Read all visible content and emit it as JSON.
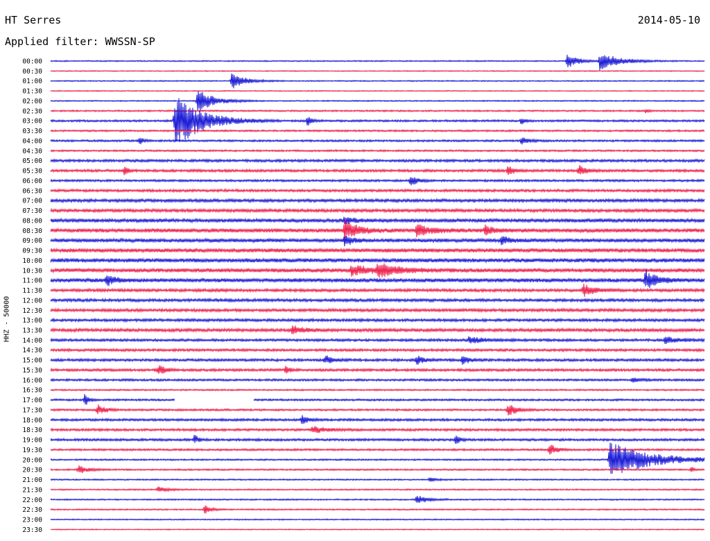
{
  "header": {
    "station": "HT Serres",
    "date": "2014-05-10",
    "filter": "Applied filter: WWSSN-SP"
  },
  "colors": {
    "blue": "#1a1ad6",
    "red": "#ee1f4b"
  },
  "chart_data": {
    "type": "line",
    "title": "HT Serres",
    "ylabel": "HHZ - 50000",
    "row_labels": [
      "00:00",
      "00:30",
      "01:00",
      "01:30",
      "02:00",
      "02:30",
      "03:00",
      "03:30",
      "04:00",
      "04:30",
      "05:00",
      "05:30",
      "06:00",
      "06:30",
      "07:00",
      "07:30",
      "08:00",
      "08:30",
      "09:00",
      "09:30",
      "10:00",
      "10:30",
      "11:00",
      "11:30",
      "12:00",
      "12:30",
      "13:00",
      "13:30",
      "14:00",
      "14:30",
      "15:00",
      "15:30",
      "16:00",
      "16:30",
      "17:00",
      "17:30",
      "18:00",
      "18:30",
      "19:00",
      "19:30",
      "20:00",
      "20:30",
      "21:00",
      "21:30",
      "22:00",
      "22:30",
      "23:00",
      "23:30"
    ],
    "row_colors": [
      "blue",
      "red",
      "blue",
      "red",
      "blue",
      "red",
      "blue",
      "red",
      "blue",
      "red",
      "blue",
      "red",
      "blue",
      "red",
      "blue",
      "red",
      "blue",
      "red",
      "blue",
      "red",
      "blue",
      "red",
      "blue",
      "red",
      "blue",
      "red",
      "blue",
      "red",
      "blue",
      "red",
      "blue",
      "red",
      "blue",
      "red",
      "blue",
      "red",
      "blue",
      "red",
      "blue",
      "red",
      "blue",
      "red",
      "blue",
      "red",
      "blue",
      "red",
      "blue",
      "red"
    ],
    "noise_levels": [
      0.6,
      0.5,
      0.6,
      0.5,
      0.6,
      0.8,
      1.0,
      0.9,
      1.0,
      0.9,
      1.3,
      1.3,
      1.1,
      1.3,
      1.6,
      1.6,
      1.8,
      2.0,
      1.8,
      2.0,
      2.0,
      2.0,
      2.0,
      1.5,
      1.5,
      1.5,
      1.4,
      1.6,
      1.3,
      1.3,
      1.3,
      1.3,
      1.1,
      0.8,
      1.0,
      1.0,
      1.2,
      1.2,
      1.2,
      1.0,
      0.8,
      0.8,
      0.7,
      0.7,
      0.7,
      0.7,
      0.6,
      0.5
    ],
    "events": [
      {
        "row": 0,
        "t": 0.79,
        "amp": 12,
        "dur": 0.015
      },
      {
        "row": 0,
        "t": 0.84,
        "amp": 13,
        "dur": 0.03
      },
      {
        "row": 2,
        "t": 0.277,
        "amp": 12,
        "dur": 0.02
      },
      {
        "row": 4,
        "t": 0.225,
        "amp": 16,
        "dur": 0.025
      },
      {
        "row": 5,
        "t": 0.91,
        "amp": 3,
        "dur": 0.005
      },
      {
        "row": 6,
        "t": 0.19,
        "amp": 40,
        "dur": 0.04
      },
      {
        "row": 6,
        "t": 0.393,
        "amp": 8,
        "dur": 0.006
      },
      {
        "row": 6,
        "t": 0.72,
        "amp": 6,
        "dur": 0.006
      },
      {
        "row": 8,
        "t": 0.136,
        "amp": 6,
        "dur": 0.006
      },
      {
        "row": 8,
        "t": 0.72,
        "amp": 6,
        "dur": 0.01
      },
      {
        "row": 11,
        "t": 0.113,
        "amp": 7,
        "dur": 0.005
      },
      {
        "row": 11,
        "t": 0.7,
        "amp": 8,
        "dur": 0.008
      },
      {
        "row": 11,
        "t": 0.808,
        "amp": 9,
        "dur": 0.01
      },
      {
        "row": 12,
        "t": 0.55,
        "amp": 8,
        "dur": 0.01
      },
      {
        "row": 16,
        "t": 0.45,
        "amp": 7,
        "dur": 0.01
      },
      {
        "row": 17,
        "t": 0.45,
        "amp": 15,
        "dur": 0.02
      },
      {
        "row": 17,
        "t": 0.56,
        "amp": 9,
        "dur": 0.02
      },
      {
        "row": 17,
        "t": 0.665,
        "amp": 8,
        "dur": 0.012
      },
      {
        "row": 18,
        "t": 0.45,
        "amp": 10,
        "dur": 0.01
      },
      {
        "row": 18,
        "t": 0.69,
        "amp": 6,
        "dur": 0.012
      },
      {
        "row": 21,
        "t": 0.46,
        "amp": 8,
        "dur": 0.025
      },
      {
        "row": 21,
        "t": 0.5,
        "amp": 10,
        "dur": 0.03
      },
      {
        "row": 22,
        "t": 0.086,
        "amp": 8,
        "dur": 0.012
      },
      {
        "row": 22,
        "t": 0.91,
        "amp": 16,
        "dur": 0.015
      },
      {
        "row": 23,
        "t": 0.815,
        "amp": 9,
        "dur": 0.015
      },
      {
        "row": 27,
        "t": 0.37,
        "amp": 7,
        "dur": 0.015
      },
      {
        "row": 28,
        "t": 0.64,
        "amp": 5,
        "dur": 0.02
      },
      {
        "row": 28,
        "t": 0.94,
        "amp": 5,
        "dur": 0.02
      },
      {
        "row": 30,
        "t": 0.42,
        "amp": 7,
        "dur": 0.01
      },
      {
        "row": 30,
        "t": 0.56,
        "amp": 7,
        "dur": 0.01
      },
      {
        "row": 30,
        "t": 0.63,
        "amp": 9,
        "dur": 0.008
      },
      {
        "row": 31,
        "t": 0.165,
        "amp": 7,
        "dur": 0.01
      },
      {
        "row": 31,
        "t": 0.36,
        "amp": 6,
        "dur": 0.006
      },
      {
        "row": 32,
        "t": 0.89,
        "amp": 4,
        "dur": 0.01
      },
      {
        "row": 34,
        "t": 0.052,
        "amp": 10,
        "dur": 0.006
      },
      {
        "row": 35,
        "t": 0.072,
        "amp": 8,
        "dur": 0.012
      },
      {
        "row": 35,
        "t": 0.7,
        "amp": 11,
        "dur": 0.012
      },
      {
        "row": 36,
        "t": 0.385,
        "amp": 7,
        "dur": 0.008
      },
      {
        "row": 37,
        "t": 0.4,
        "amp": 5,
        "dur": 0.02
      },
      {
        "row": 38,
        "t": 0.22,
        "amp": 7,
        "dur": 0.006
      },
      {
        "row": 38,
        "t": 0.62,
        "amp": 8,
        "dur": 0.005
      },
      {
        "row": 39,
        "t": 0.763,
        "amp": 9,
        "dur": 0.01
      },
      {
        "row": 40,
        "t": 0.855,
        "amp": 26,
        "dur": 0.06
      },
      {
        "row": 41,
        "t": 0.042,
        "amp": 6,
        "dur": 0.015
      },
      {
        "row": 41,
        "t": 0.98,
        "amp": 4,
        "dur": 0.005
      },
      {
        "row": 42,
        "t": 0.58,
        "amp": 3,
        "dur": 0.01
      },
      {
        "row": 43,
        "t": 0.164,
        "amp": 4,
        "dur": 0.015
      },
      {
        "row": 44,
        "t": 0.56,
        "amp": 7,
        "dur": 0.015
      },
      {
        "row": 45,
        "t": 0.236,
        "amp": 6,
        "dur": 0.01
      }
    ],
    "gaps": [
      {
        "row": 34,
        "from": 0.19,
        "to": 0.31
      }
    ]
  }
}
